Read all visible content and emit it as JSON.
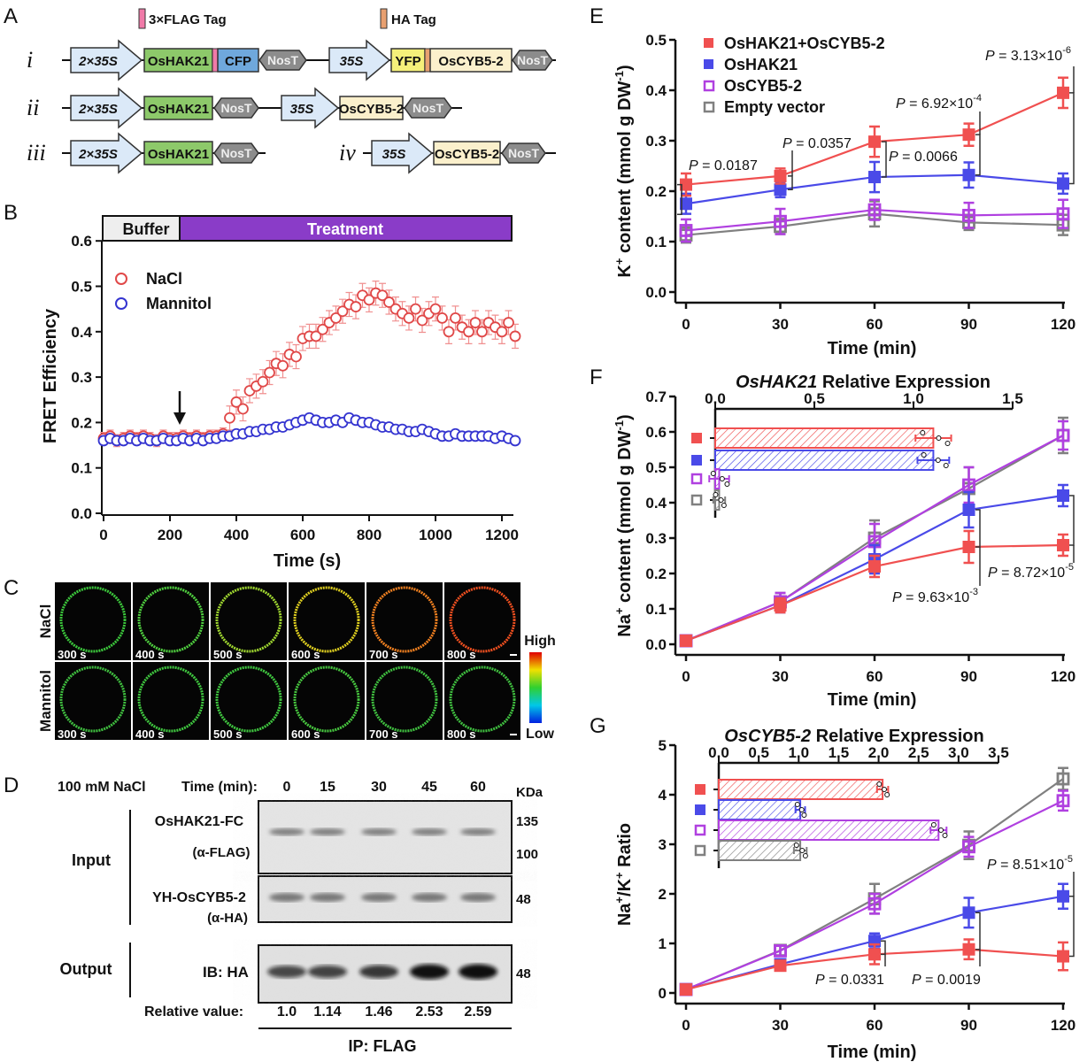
{
  "panel_letters": {
    "A": "A",
    "B": "B",
    "C": "C",
    "D": "D",
    "E": "E",
    "F": "F",
    "G": "G"
  },
  "panel_a": {
    "legend": {
      "flag": "3×FLAG Tag",
      "ha": "HA Tag",
      "flag_color": "#f07aa8",
      "ha_color": "#e8a070"
    },
    "rows": {
      "i": "i",
      "ii": "ii",
      "iii": "iii",
      "iv": "iv"
    },
    "parts": {
      "p2x35s": "2×35S",
      "p35s": "35S",
      "hak": "OsHAK21",
      "cfp": "CFP",
      "yfp": "YFP",
      "cyb": "OsCYB5-2",
      "nost": "NosT"
    },
    "colors": {
      "promoter": "#dbe9f8",
      "hak": "#8dc96a",
      "cfp": "#6fa8dc",
      "yfp": "#f5f07a",
      "cyb": "#fbf0cc",
      "nost": "#8c8c8c"
    }
  },
  "panel_b": {
    "phase_buffer": "Buffer",
    "phase_treatment": "Treatment",
    "treatment_color": "#8a3cc8"
  },
  "panel_c": {
    "rows": [
      "NaCl",
      "Mannitol"
    ],
    "times": [
      "300 s",
      "400 s",
      "500 s",
      "600 s",
      "700 s",
      "800 s"
    ],
    "ring_colors": [
      [
        "#3cc83c",
        "#50d040",
        "#a0d830",
        "#e0d020",
        "#f08020",
        "#f05020"
      ],
      [
        "#40c040",
        "#40c840",
        "#40c840",
        "#48c840",
        "#40c040",
        "#40c040"
      ]
    ],
    "colorbar_high": "High",
    "colorbar_low": "Low"
  },
  "panel_d": {
    "treatment": "100 mM NaCl",
    "time_label": "Time (min):",
    "times": [
      "0",
      "15",
      "30",
      "45",
      "60"
    ],
    "kda": "KDa",
    "input": "Input",
    "output": "Output",
    "blot1": {
      "name": "OsHAK21-FC",
      "antibody": "(α-FLAG)",
      "markers": [
        "135",
        "100"
      ]
    },
    "blot2": {
      "name": "YH-OsCYB5-2",
      "antibody": "(α-HA)",
      "marker": "48"
    },
    "blot3": {
      "name": "IB: HA",
      "marker": "48"
    },
    "relative_label": "Relative value:",
    "relative_values": [
      "1.0",
      "1.14",
      "1.46",
      "2.53",
      "2.59"
    ],
    "ip": "IP: FLAG"
  },
  "legend_e": [
    "OsHAK21+OsCYB5-2",
    "OsHAK21",
    "OsCYB5-2",
    "Empty vector"
  ],
  "pvalues": {
    "e": [
      {
        "p": "P",
        "rest": " = 0.0187",
        "exp": ""
      },
      {
        "p": "P",
        "rest": " = 0.0357",
        "exp": ""
      },
      {
        "p": "P",
        "rest": " = 0.0066",
        "exp": ""
      },
      {
        "p": "P",
        "rest": " = 6.92×10",
        "exp": "-4"
      },
      {
        "p": "P",
        "rest": " = 3.13×10",
        "exp": "-6"
      }
    ],
    "f": [
      {
        "p": "P",
        "rest": " = 9.63×10",
        "exp": "-3"
      },
      {
        "p": "P",
        "rest": " = 8.72×10",
        "exp": "-5"
      }
    ],
    "g": [
      {
        "p": "P",
        "rest": " = 0.0331",
        "exp": ""
      },
      {
        "p": "P",
        "rest": " = 0.0019",
        "exp": ""
      },
      {
        "p": "P",
        "rest": " = 8.51×10",
        "exp": "-5"
      }
    ]
  },
  "chart_data": [
    {
      "type": "scatter",
      "panel": "B",
      "xlabel": "Time (s)",
      "ylabel": "FRET Efficiency",
      "xlim": [
        0,
        1250
      ],
      "ylim": [
        0,
        0.6
      ],
      "xticks": [
        "0",
        "200",
        "400",
        "600",
        "800",
        "1000",
        "1200"
      ],
      "yticks": [
        "0.0",
        "0.1",
        "0.2",
        "0.3",
        "0.4",
        "0.5",
        "0.6"
      ],
      "legend_position": "top-left",
      "annotation": "arrow at ~230 s (treatment start)",
      "x": [
        0,
        20,
        40,
        60,
        80,
        100,
        120,
        140,
        160,
        180,
        200,
        220,
        240,
        260,
        280,
        300,
        320,
        340,
        360,
        380,
        400,
        420,
        440,
        460,
        480,
        500,
        520,
        540,
        560,
        580,
        600,
        620,
        640,
        660,
        680,
        700,
        720,
        740,
        760,
        780,
        800,
        820,
        840,
        860,
        880,
        900,
        920,
        940,
        960,
        980,
        1000,
        1020,
        1040,
        1060,
        1080,
        1100,
        1120,
        1140,
        1160,
        1180,
        1200,
        1220,
        1240
      ],
      "series": [
        {
          "name": "NaCl",
          "color": "#e04848",
          "error": 0.022,
          "values": [
            0.165,
            0.17,
            0.16,
            0.165,
            0.17,
            0.165,
            0.17,
            0.165,
            0.16,
            0.17,
            0.165,
            0.165,
            0.17,
            0.165,
            0.17,
            0.165,
            0.17,
            0.17,
            0.175,
            0.21,
            0.245,
            0.23,
            0.27,
            0.28,
            0.29,
            0.31,
            0.33,
            0.325,
            0.35,
            0.345,
            0.385,
            0.39,
            0.39,
            0.405,
            0.42,
            0.43,
            0.445,
            0.46,
            0.455,
            0.48,
            0.47,
            0.485,
            0.48,
            0.465,
            0.45,
            0.44,
            0.43,
            0.45,
            0.425,
            0.44,
            0.45,
            0.43,
            0.4,
            0.43,
            0.41,
            0.4,
            0.42,
            0.4,
            0.42,
            0.41,
            0.4,
            0.42,
            0.39
          ]
        },
        {
          "name": "Mannitol",
          "color": "#3434d0",
          "error": 0.013,
          "values": [
            0.16,
            0.165,
            0.16,
            0.16,
            0.165,
            0.16,
            0.165,
            0.16,
            0.16,
            0.165,
            0.16,
            0.16,
            0.165,
            0.16,
            0.165,
            0.16,
            0.165,
            0.165,
            0.17,
            0.17,
            0.175,
            0.175,
            0.18,
            0.18,
            0.185,
            0.185,
            0.19,
            0.19,
            0.195,
            0.2,
            0.205,
            0.21,
            0.205,
            0.2,
            0.2,
            0.205,
            0.2,
            0.21,
            0.205,
            0.2,
            0.2,
            0.195,
            0.19,
            0.19,
            0.185,
            0.185,
            0.18,
            0.18,
            0.185,
            0.18,
            0.175,
            0.17,
            0.17,
            0.175,
            0.17,
            0.17,
            0.17,
            0.17,
            0.17,
            0.165,
            0.17,
            0.165,
            0.16
          ]
        }
      ]
    },
    {
      "type": "line",
      "panel": "E",
      "xlabel": "Time (min)",
      "ylabel": "K+ content (mmol g DW-1)",
      "ylim": [
        0,
        0.5
      ],
      "x": [
        0,
        30,
        60,
        90,
        120
      ],
      "xticks": [
        "0",
        "30",
        "60",
        "90",
        "120"
      ],
      "yticks": [
        "0.0",
        "0.1",
        "0.2",
        "0.3",
        "0.4",
        "0.5"
      ],
      "legend_position": "top-left",
      "series": [
        {
          "name": "OsHAK21+OsCYB5-2",
          "color": "#f05050",
          "filled": true,
          "values": [
            0.213,
            0.23,
            0.298,
            0.312,
            0.395
          ],
          "error": [
            0.022,
            0.015,
            0.03,
            0.022,
            0.03
          ]
        },
        {
          "name": "OsHAK21",
          "color": "#4a4ae8",
          "filled": true,
          "values": [
            0.175,
            0.203,
            0.228,
            0.232,
            0.215
          ],
          "error": [
            0.02,
            0.015,
            0.03,
            0.025,
            0.02
          ]
        },
        {
          "name": "OsCYB5-2",
          "color": "#b040e0",
          "filled": false,
          "values": [
            0.122,
            0.14,
            0.163,
            0.152,
            0.155
          ],
          "error": [
            0.022,
            0.025,
            0.02,
            0.025,
            0.028
          ]
        },
        {
          "name": "Empty vector",
          "color": "#808080",
          "filled": false,
          "values": [
            0.113,
            0.13,
            0.155,
            0.138,
            0.133
          ],
          "error": [
            0.015,
            0.015,
            0.025,
            0.015,
            0.02
          ]
        }
      ]
    },
    {
      "type": "line",
      "panel": "F",
      "xlabel": "Time (min)",
      "ylabel": "Na+ content (mmol g DW-1)",
      "ylim": [
        0,
        0.7
      ],
      "x": [
        0,
        30,
        60,
        90,
        120
      ],
      "xticks": [
        "0",
        "30",
        "60",
        "90",
        "120"
      ],
      "yticks": [
        "0.0",
        "0.1",
        "0.2",
        "0.3",
        "0.4",
        "0.5",
        "0.6",
        "0.7"
      ],
      "series": [
        {
          "name": "OsHAK21+OsCYB5-2",
          "color": "#f05050",
          "filled": true,
          "values": [
            0.01,
            0.11,
            0.22,
            0.275,
            0.28
          ],
          "error": [
            0.005,
            0.02,
            0.03,
            0.045,
            0.03
          ]
        },
        {
          "name": "OsHAK21",
          "color": "#4a4ae8",
          "filled": true,
          "values": [
            0.01,
            0.11,
            0.24,
            0.38,
            0.42
          ],
          "error": [
            0.005,
            0.02,
            0.04,
            0.05,
            0.03
          ]
        },
        {
          "name": "OsCYB5-2",
          "color": "#b040e0",
          "filled": false,
          "values": [
            0.01,
            0.12,
            0.29,
            0.45,
            0.59
          ],
          "error": [
            0.005,
            0.025,
            0.05,
            0.05,
            0.04
          ]
        },
        {
          "name": "Empty vector",
          "color": "#808080",
          "filled": false,
          "values": [
            0.01,
            0.12,
            0.3,
            0.44,
            0.59
          ],
          "error": [
            0.005,
            0.025,
            0.05,
            0.06,
            0.05
          ]
        }
      ]
    },
    {
      "type": "bar",
      "panel": "F-inset",
      "orientation": "horizontal",
      "title_gene": "OsHAK21",
      "title_rest": " Relative Expression",
      "xlim": [
        0,
        1.5
      ],
      "xticks": [
        "0.0",
        "0.5",
        "1.0",
        "1.5"
      ],
      "categories": [
        "OsHAK21+OsCYB5-2",
        "OsHAK21",
        "OsCYB5-2",
        "Empty vector"
      ],
      "values": [
        1.1,
        1.1,
        0.02,
        0.02
      ],
      "error": [
        0.09,
        0.08,
        0.05,
        0.03
      ]
    },
    {
      "type": "line",
      "panel": "G",
      "xlabel": "Time (min)",
      "ylabel": "Na+/K+ Ratio",
      "ylim": [
        0,
        5
      ],
      "x": [
        0,
        30,
        60,
        90,
        120
      ],
      "xticks": [
        "0",
        "30",
        "60",
        "90",
        "120"
      ],
      "yticks": [
        "0",
        "1",
        "2",
        "3",
        "4",
        "5"
      ],
      "series": [
        {
          "name": "OsHAK21+OsCYB5-2",
          "color": "#f05050",
          "filled": true,
          "values": [
            0.07,
            0.55,
            0.78,
            0.88,
            0.74
          ],
          "error": [
            0.03,
            0.1,
            0.2,
            0.2,
            0.28
          ]
        },
        {
          "name": "OsHAK21",
          "color": "#4a4ae8",
          "filled": true,
          "values": [
            0.07,
            0.58,
            1.05,
            1.62,
            1.95
          ],
          "error": [
            0.03,
            0.1,
            0.15,
            0.3,
            0.25
          ]
        },
        {
          "name": "OsCYB5-2",
          "color": "#b040e0",
          "filled": false,
          "values": [
            0.07,
            0.85,
            1.8,
            2.95,
            3.88
          ],
          "error": [
            0.03,
            0.1,
            0.2,
            0.2,
            0.2
          ]
        },
        {
          "name": "Empty vector",
          "color": "#808080",
          "filled": false,
          "values": [
            0.07,
            0.86,
            1.9,
            2.98,
            4.32
          ],
          "error": [
            0.03,
            0.1,
            0.3,
            0.28,
            0.22
          ]
        }
      ]
    },
    {
      "type": "bar",
      "panel": "G-inset",
      "orientation": "horizontal",
      "title_gene": "OsCYB5-2",
      "title_rest": " Relative Expression",
      "xlim": [
        0,
        3.5
      ],
      "xticks": [
        "0.0",
        "0.5",
        "1.0",
        "1.5",
        "2.0",
        "2.5",
        "3.0",
        "3.5"
      ],
      "categories": [
        "OsHAK21+OsCYB5-2",
        "OsHAK21",
        "OsCYB5-2",
        "Empty vector"
      ],
      "values": [
        2.05,
        1.02,
        2.75,
        1.02
      ],
      "error": [
        0.07,
        0.06,
        0.1,
        0.08
      ]
    }
  ]
}
